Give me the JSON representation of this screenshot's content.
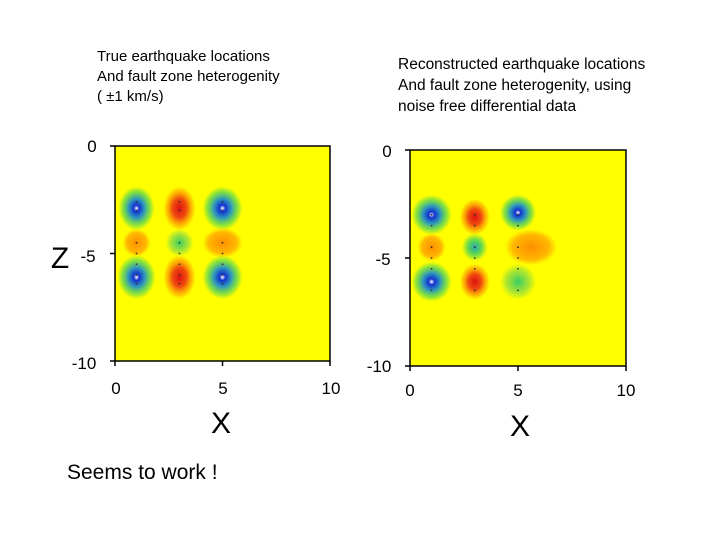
{
  "left_caption": {
    "line1": "True earthquake locations",
    "line2": "And fault zone heterogenity",
    "line3": "( ±1 km/s)"
  },
  "right_caption": {
    "line1": "Reconstructed earthquake locations",
    "line2": "And fault zone heterogenity, using",
    "line3": "noise free differential data"
  },
  "remark": "Seems to work !",
  "colors": {
    "background_field": "#ffff00",
    "positive_anomaly": "#dd1010",
    "negative_anomaly": "#1030d0",
    "mid_anomaly": "#33cc66",
    "orange_anomaly": "#ff8800"
  },
  "chart_data": [
    {
      "type": "heatmap",
      "name": "true",
      "xlabel": "X",
      "ylabel": "Z",
      "xlim": [
        0,
        10
      ],
      "ylim": [
        -10,
        0
      ],
      "xticks": [
        "0",
        "5",
        "10"
      ],
      "yticks": [
        "0",
        "-5",
        "-10"
      ],
      "quakes_x": [
        1,
        3,
        5
      ],
      "quakes_z": [
        -2.6,
        -3.0,
        -4.5,
        -5.0,
        -5.5,
        -6.0,
        -6.4
      ]
    },
    {
      "type": "heatmap",
      "name": "reconstructed",
      "xlabel": "X",
      "ylabel": "Z",
      "xlim": [
        0,
        10
      ],
      "ylim": [
        -10,
        0
      ],
      "xticks": [
        "0",
        "5",
        "10"
      ],
      "yticks": [
        "0",
        "-5",
        "-10"
      ],
      "quakes_x": [
        1,
        3,
        5
      ],
      "quakes_z": [
        -3.0,
        -3.5,
        -4.5,
        -5.0,
        -5.5,
        -6.5
      ]
    }
  ]
}
